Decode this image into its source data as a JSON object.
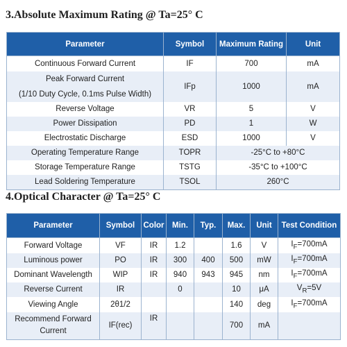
{
  "section3": {
    "title": "3.Absolute Maximum Rating @ Ta=25° C",
    "headers": [
      "Parameter",
      "Symbol",
      "Maximum Rating",
      "Unit"
    ],
    "rows": [
      {
        "parameter": "Continuous Forward Current",
        "symbol": "IF",
        "rating": "700",
        "unit": "mA"
      },
      {
        "parameter": "Peak Forward Current",
        "parameter_note": "(1/10 Duty Cycle, 0.1ms Pulse Width)",
        "symbol": "IFp",
        "rating": "1000",
        "unit": "mA"
      },
      {
        "parameter": "Reverse Voltage",
        "symbol": "VR",
        "rating": "5",
        "unit": "V"
      },
      {
        "parameter": "Power Dissipation",
        "symbol": "PD",
        "rating": "1",
        "unit": "W"
      },
      {
        "parameter": "Electrostatic Discharge",
        "symbol": "ESD",
        "rating": "1000",
        "unit": "V"
      },
      {
        "parameter": "Operating Temperature Range",
        "symbol": "TOPR",
        "rating": "-25°C to +80°C"
      },
      {
        "parameter": "Storage Temperature Range",
        "symbol": "TSTG",
        "rating": "-35°C to +100°C"
      },
      {
        "parameter": "Lead Soldering Temperature",
        "symbol": "TSOL",
        "rating": "260°C"
      }
    ]
  },
  "section4": {
    "title": "4.Optical Character @ Ta=25° C",
    "headers": [
      "Parameter",
      "Symbol",
      "Color",
      "Min.",
      "Typ.",
      "Max.",
      "Unit",
      "Test Condition"
    ],
    "rows": [
      {
        "parameter": "Forward Voltage",
        "symbol": "VF",
        "color": "IR",
        "min": "1.2",
        "typ": "",
        "max": "1.6",
        "unit": "V",
        "condition_sym": "I",
        "condition_sub": "F",
        "condition_val": "=700mA"
      },
      {
        "parameter": "Luminous power",
        "symbol": "PO",
        "color": "IR",
        "min": "300",
        "typ": "400",
        "max": "500",
        "unit": "mW",
        "condition_sym": "I",
        "condition_sub": "F",
        "condition_val": "=700mA"
      },
      {
        "parameter": "Dominant Wavelength",
        "symbol": "WIP",
        "color": "IR",
        "min": "940",
        "typ": "943",
        "max": "945",
        "unit": "nm",
        "condition_sym": "I",
        "condition_sub": "F",
        "condition_val": "=700mA"
      },
      {
        "parameter": "Reverse Current",
        "symbol": "IR",
        "color": "",
        "min": "0",
        "typ": "",
        "max": "10",
        "unit": "μA",
        "condition_sym": "V",
        "condition_sub": "R",
        "condition_val": "=5V"
      },
      {
        "parameter": "Viewing Angle",
        "symbol": "2θ1/2",
        "color": "",
        "min": "",
        "typ": "",
        "max": "140",
        "unit": "deg",
        "condition_sym": "I",
        "condition_sub": "F",
        "condition_val": "=700mA"
      },
      {
        "parameter": "Recommend Forward",
        "parameter_line2": "Current",
        "symbol": "IF(rec)",
        "color": "IR",
        "min": "",
        "typ": "",
        "max": "700",
        "unit": "mA",
        "condition_sym": "",
        "condition_sub": "",
        "condition_val": ""
      }
    ]
  }
}
